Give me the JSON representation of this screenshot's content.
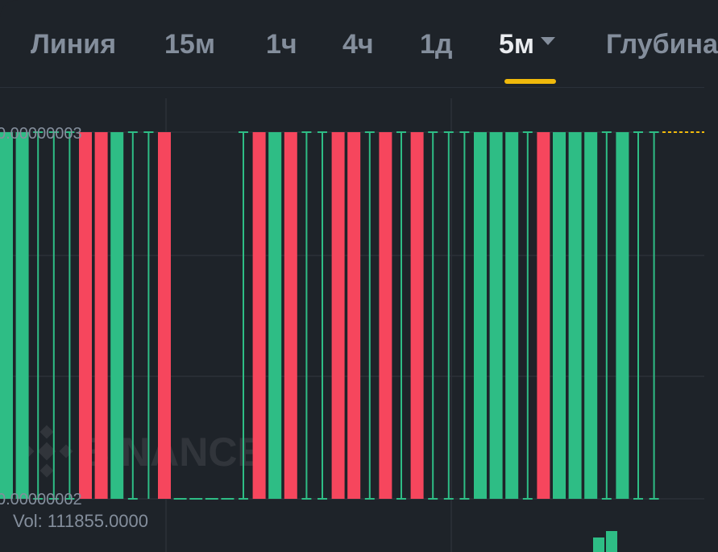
{
  "tabs": [
    {
      "label": "Линия"
    },
    {
      "label": "15м"
    },
    {
      "label": "1ч"
    },
    {
      "label": "4ч"
    },
    {
      "label": "1д"
    },
    {
      "label": "5м",
      "active": true
    },
    {
      "label": "Глубина"
    }
  ],
  "colors": {
    "up": "#2ebd85",
    "down": "#f6465d",
    "background": "#1e2329",
    "grid": "#2b3139",
    "accent": "#f0b90b",
    "axis_text": "#848e9c"
  },
  "watermark": "BINANCE",
  "chart_data": {
    "type": "candlestick",
    "y_high_label": "0.00000003",
    "y_low_label": "0.00000002",
    "ylim": [
      2e-08,
      3e-08
    ],
    "volume_label": "Vol: 111855.0000",
    "candles": [
      {
        "dir": "up",
        "body": "full"
      },
      {
        "dir": "up",
        "body": "full"
      },
      {
        "dir": "up",
        "body": "doji"
      },
      {
        "dir": "up",
        "body": "doji"
      },
      {
        "dir": "up",
        "body": "doji"
      },
      {
        "dir": "down",
        "body": "full"
      },
      {
        "dir": "down",
        "body": "full"
      },
      {
        "dir": "up",
        "body": "full"
      },
      {
        "dir": "up",
        "body": "doji"
      },
      {
        "dir": "up",
        "body": "doji-top"
      },
      {
        "dir": "down",
        "body": "full"
      },
      {
        "dir": "up",
        "body": "flat-bottom"
      },
      {
        "dir": "up",
        "body": "flat-bottom"
      },
      {
        "dir": "up",
        "body": "flat-bottom"
      },
      {
        "dir": "up",
        "body": "flat-bottom"
      },
      {
        "dir": "up",
        "body": "doji"
      },
      {
        "dir": "down",
        "body": "full"
      },
      {
        "dir": "up",
        "body": "full"
      },
      {
        "dir": "down",
        "body": "full"
      },
      {
        "dir": "up",
        "body": "doji"
      },
      {
        "dir": "up",
        "body": "doji"
      },
      {
        "dir": "down",
        "body": "full"
      },
      {
        "dir": "down",
        "body": "full"
      },
      {
        "dir": "up",
        "body": "doji"
      },
      {
        "dir": "down",
        "body": "full"
      },
      {
        "dir": "up",
        "body": "doji"
      },
      {
        "dir": "down",
        "body": "full"
      },
      {
        "dir": "up",
        "body": "doji"
      },
      {
        "dir": "up",
        "body": "doji"
      },
      {
        "dir": "up",
        "body": "doji"
      },
      {
        "dir": "up",
        "body": "full"
      },
      {
        "dir": "up",
        "body": "full"
      },
      {
        "dir": "up",
        "body": "full"
      },
      {
        "dir": "up",
        "body": "doji"
      },
      {
        "dir": "down",
        "body": "full"
      },
      {
        "dir": "up",
        "body": "full"
      },
      {
        "dir": "up",
        "body": "full"
      },
      {
        "dir": "up",
        "body": "full"
      },
      {
        "dir": "up",
        "body": "doji"
      },
      {
        "dir": "up",
        "body": "full"
      },
      {
        "dir": "up",
        "body": "doji"
      },
      {
        "dir": "up",
        "body": "doji"
      }
    ],
    "last_price_line": "top",
    "volume_bars_visible": [
      {
        "dir": "up"
      },
      {
        "dir": "up"
      }
    ]
  }
}
